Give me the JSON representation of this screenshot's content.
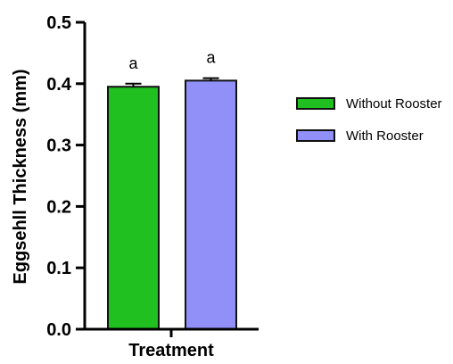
{
  "chart_data": {
    "type": "bar",
    "title": "",
    "xlabel": "Treatment",
    "ylabel": "Eggsehll Thickness (mm)",
    "ylim": [
      0,
      0.5
    ],
    "yticks": [
      "0.0",
      "0.1",
      "0.2",
      "0.3",
      "0.4",
      "0.5"
    ],
    "grid": false,
    "legend_position": "right",
    "series": [
      {
        "name": "Without Rooster",
        "value": 0.395,
        "error": 0.005,
        "color": "#1FC01F",
        "label": "a"
      },
      {
        "name": "With Rooster",
        "value": 0.405,
        "error": 0.004,
        "color": "#9090F8",
        "label": "a"
      }
    ]
  }
}
